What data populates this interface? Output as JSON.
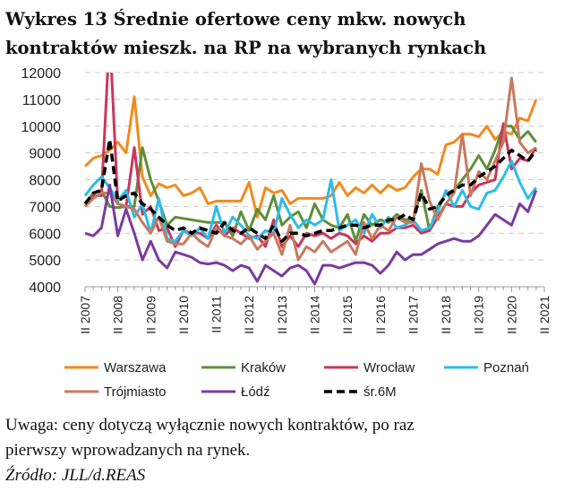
{
  "chart_data": {
    "type": "line",
    "title": "Wykres 13 Średnie ofertowe ceny mkw. nowych kontraktów mieszk. na RP na wybranych rynkach",
    "title_lines": [
      "Wykres 13 Średnie ofertowe ceny mkw. nowych",
      "kontraktów mieszk. na RP na wybranych rynkach"
    ],
    "xlabel": "",
    "ylabel": "",
    "ylim": [
      4000,
      12000
    ],
    "yticks": [
      4000,
      5000,
      6000,
      7000,
      8000,
      9000,
      10000,
      11000,
      12000
    ],
    "xtick_labels": [
      "II 2007",
      "II 2008",
      "II 2009",
      "II 2010",
      "II 2011",
      "II 2012",
      "II 2013",
      "II 2014",
      "II 2015",
      "II 2016",
      "II 2017",
      "II 2018",
      "II 2019",
      "II 2020",
      "II 2021"
    ],
    "x_frequency": "quarterly",
    "x_start": "II 2007",
    "grid": "horizontal dashed",
    "legend_position": "bottom",
    "series": [
      {
        "name": "Warszawa",
        "color": "#f28a1e",
        "dashed": false,
        "values": [
          8500,
          8800,
          8900,
          9100,
          9400,
          9000,
          11100,
          8100,
          7400,
          7850,
          7700,
          7800,
          7400,
          7500,
          7700,
          7100,
          7200,
          7200,
          7200,
          7200,
          7900,
          6600,
          7700,
          7500,
          7600,
          7100,
          7300,
          7300,
          7300,
          7300,
          7400,
          7900,
          7400,
          7700,
          7500,
          7800,
          7500,
          7800,
          7600,
          7700,
          8100,
          8400,
          8400,
          8200,
          9300,
          9400,
          9700,
          9700,
          9600,
          10000,
          9500,
          9800,
          9700,
          10300,
          10200,
          11000
        ]
      },
      {
        "name": "Kraków",
        "color": "#5e8f3a",
        "dashed": false,
        "values": [
          7100,
          7500,
          7600,
          7000,
          6950,
          7000,
          7000,
          9200,
          8000,
          7200,
          6300,
          6600,
          6550,
          6500,
          6450,
          6400,
          6400,
          6400,
          5900,
          6800,
          6100,
          6900,
          6500,
          7400,
          6300,
          6600,
          6800,
          6200,
          7100,
          6500,
          6300,
          6200,
          6700,
          5700,
          6700,
          6300,
          6500,
          6400,
          6700,
          6500,
          6500,
          7600,
          6100,
          7000,
          7500,
          7600,
          8000,
          8400,
          8900,
          8400,
          9100,
          10000,
          10000,
          9500,
          9800,
          9400
        ]
      },
      {
        "name": "Wrocław",
        "color": "#c8375a",
        "dashed": false,
        "values": [
          7000,
          7400,
          7400,
          13500,
          7100,
          7000,
          9200,
          6700,
          7000,
          6100,
          6200,
          5500,
          6100,
          6000,
          6000,
          5800,
          6300,
          5900,
          6200,
          6000,
          5800,
          5900,
          5500,
          6500,
          5500,
          5900,
          5500,
          6000,
          5900,
          6000,
          5800,
          6000,
          5900,
          5600,
          5900,
          5700,
          6000,
          6000,
          6200,
          6200,
          6300,
          6000,
          6100,
          6600,
          7100,
          7000,
          7000,
          7500,
          7800,
          7900,
          8000,
          10100,
          8400,
          8800,
          8700,
          9200
        ]
      },
      {
        "name": "Poznań",
        "color": "#2bbde8",
        "dashed": false,
        "values": [
          7400,
          7800,
          8100,
          7700,
          7200,
          7600,
          6600,
          7100,
          6000,
          7300,
          5800,
          5700,
          6100,
          5900,
          6200,
          5800,
          7000,
          6000,
          6600,
          6300,
          5900,
          5800,
          6100,
          6000,
          7300,
          6700,
          6200,
          6500,
          6300,
          6500,
          8000,
          6100,
          6300,
          6500,
          6000,
          6700,
          6200,
          6600,
          6200,
          6300,
          6500,
          6100,
          6200,
          6800,
          7600,
          7000,
          7600,
          7000,
          6900,
          7500,
          7600,
          8100,
          8700,
          7900,
          7300,
          7700
        ]
      },
      {
        "name": "Trójmiasto",
        "color": "#c87a5e",
        "dashed": false,
        "values": [
          7000,
          7300,
          7500,
          7500,
          7100,
          7000,
          6900,
          6400,
          6000,
          6600,
          5700,
          5600,
          5600,
          6000,
          5700,
          5500,
          6200,
          5900,
          5800,
          5600,
          5900,
          5400,
          5700,
          6000,
          5200,
          6300,
          5000,
          5500,
          5300,
          5700,
          5300,
          5500,
          5700,
          5200,
          6400,
          5800,
          6300,
          6100,
          6600,
          6400,
          6400,
          8600,
          7200,
          6500,
          7100,
          7500,
          9700,
          7400,
          8300,
          8000,
          8700,
          9400,
          11800,
          9400,
          9000,
          9200
        ]
      },
      {
        "name": "Łódź",
        "color": "#7b3b9e",
        "dashed": false,
        "values": [
          6000,
          5900,
          6200,
          7800,
          5900,
          6900,
          6000,
          5000,
          5700,
          5000,
          4700,
          5300,
          5200,
          5100,
          4900,
          4850,
          4900,
          4800,
          4600,
          4800,
          4700,
          4200,
          4800,
          4600,
          4400,
          4700,
          4800,
          4600,
          4100,
          4800,
          4800,
          4700,
          4800,
          4900,
          4900,
          4800,
          4500,
          4800,
          5300,
          5000,
          5200,
          5200,
          5400,
          5600,
          5700,
          5800,
          5700,
          5700,
          5900,
          6300,
          6700,
          6500,
          6300,
          7100,
          6800,
          7600
        ]
      },
      {
        "name": "śr.6M",
        "color": "#000000",
        "dashed": true,
        "values": [
          7100,
          7500,
          7600,
          9500,
          7200,
          7400,
          7500,
          7100,
          6900,
          6600,
          6300,
          6100,
          6200,
          6000,
          6200,
          6100,
          6000,
          6400,
          6100,
          6000,
          6200,
          6000,
          5800,
          6300,
          5700,
          6000,
          6000,
          5900,
          6000,
          6100,
          6100,
          6200,
          6300,
          6300,
          6200,
          6300,
          6300,
          6500,
          6500,
          6700,
          6500,
          7500,
          6900,
          7000,
          7400,
          7600,
          7800,
          7800,
          8100,
          8300,
          8500,
          8800,
          9100,
          8900,
          8700,
          9100
        ]
      }
    ]
  },
  "notes": {
    "line1": "Uwaga: ceny dotyczą wyłącznie nowych kontraktów, po raz",
    "line2": "pierwszy wprowadzanych na rynek.",
    "source": "Źródło: JLL/d.REAS"
  }
}
